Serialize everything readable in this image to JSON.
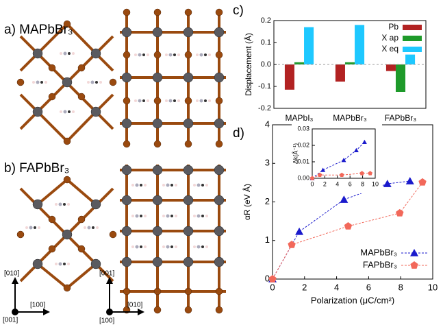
{
  "labels": {
    "a": "a) MAPbBr₃",
    "b": "b) FAPbBr₃",
    "c": "c)",
    "d": "d)",
    "axes_left": {
      "up": "[010]",
      "right": "[100]",
      "out": "[001]"
    },
    "axes_right": {
      "up": "[001]",
      "right": "[010]",
      "out": "[100]"
    }
  },
  "chart_data": [
    {
      "type": "bar",
      "ylabel": "Displacement (Å)",
      "categories": [
        "MAPbI₃",
        "MAPbBr₃",
        "FAPbBr₃"
      ],
      "series": [
        {
          "name": "Pb",
          "color": "#b22222",
          "values": [
            -0.115,
            -0.078,
            -0.03
          ]
        },
        {
          "name": "X ap",
          "color": "#1e9a2a",
          "values": [
            0.01,
            0.01,
            -0.125
          ]
        },
        {
          "name": "X eq",
          "color": "#1ec8ff",
          "values": [
            0.17,
            0.18,
            0.045
          ]
        }
      ],
      "ylim": [
        -0.2,
        0.2
      ],
      "yticks": [
        -0.2,
        -0.1,
        {
          "value": 0,
          "label": "0.0"
        },
        0.1,
        0.2
      ],
      "zero_line": true,
      "legend": "upper right"
    },
    {
      "type": "line",
      "xlabel": "Polarization (μC/cm²)",
      "ylabel": "αR (eV Å)",
      "series": [
        {
          "name": "MAPbBr₃",
          "color": "#1a1acc",
          "marker": "triangle",
          "x": [
            0,
            1.67,
            4.46,
            7.17,
            8.58
          ],
          "values": [
            0,
            1.23,
            2.06,
            2.47,
            2.54
          ]
        },
        {
          "name": "FAPbBr₃",
          "color": "#f2685a",
          "marker": "pentagon",
          "x": [
            0,
            1.2,
            4.72,
            7.94,
            9.36
          ],
          "values": [
            0,
            0.89,
            1.37,
            1.71,
            2.51
          ]
        }
      ],
      "xlim": [
        0,
        10
      ],
      "xticks": [
        0,
        2,
        4,
        6,
        8,
        10
      ],
      "ylim": [
        0,
        4
      ],
      "yticks": [
        0,
        1,
        2,
        3,
        4
      ],
      "legend": "lower right"
    },
    {
      "type": "line",
      "ylabel": "Δk(Å⁻¹)",
      "series": [
        {
          "color": "#1a1acc",
          "marker": "triangle",
          "x": [
            0,
            1.7,
            5,
            7,
            8.3
          ],
          "values": [
            0,
            0.005,
            0.011,
            0.017,
            0.022
          ]
        },
        {
          "color": "#f2685a",
          "marker": "pentagon",
          "x": [
            0,
            1.2,
            4.7,
            7.9,
            9.2
          ],
          "values": [
            0,
            0.002,
            0.002,
            0.003,
            0.003
          ]
        }
      ],
      "xlim": [
        0,
        10
      ],
      "xticks": [
        0,
        2,
        4,
        6,
        8,
        10
      ],
      "ylim": [
        0,
        0.03
      ],
      "yticks": [
        {
          "value": 0,
          "label": "0.00"
        },
        0.01,
        0.02,
        0.03
      ]
    }
  ]
}
